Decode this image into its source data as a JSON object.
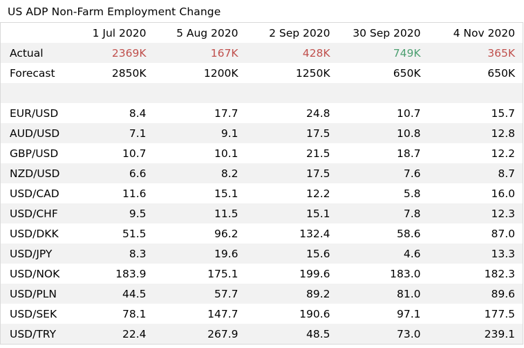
{
  "title": "US ADP Non-Farm Employment Change",
  "chart_data": {
    "type": "table",
    "title": "US ADP Non-Farm Employment Change",
    "columns": [
      "1 Jul 2020",
      "5 Aug 2020",
      "2 Sep 2020",
      "30 Sep 2020",
      "4 Nov 2020"
    ],
    "actual": {
      "label": "Actual",
      "values": [
        {
          "text": "2369K",
          "tone": "red"
        },
        {
          "text": "167K",
          "tone": "red"
        },
        {
          "text": "428K",
          "tone": "red"
        },
        {
          "text": "749K",
          "tone": "green"
        },
        {
          "text": "365K",
          "tone": "red"
        }
      ]
    },
    "forecast": {
      "label": "Forecast",
      "values": [
        "2850K",
        "1200K",
        "1250K",
        "650K",
        "650K"
      ]
    },
    "rows": [
      {
        "label": "EUR/USD",
        "values": [
          "8.4",
          "17.7",
          "24.8",
          "10.7",
          "15.7"
        ]
      },
      {
        "label": "AUD/USD",
        "values": [
          "7.1",
          "9.1",
          "17.5",
          "10.8",
          "12.8"
        ]
      },
      {
        "label": "GBP/USD",
        "values": [
          "10.7",
          "10.1",
          "21.5",
          "18.7",
          "12.2"
        ]
      },
      {
        "label": "NZD/USD",
        "values": [
          "6.6",
          "8.2",
          "17.5",
          "7.6",
          "8.7"
        ]
      },
      {
        "label": "USD/CAD",
        "values": [
          "11.6",
          "15.1",
          "12.2",
          "5.8",
          "16.0"
        ]
      },
      {
        "label": "USD/CHF",
        "values": [
          "9.5",
          "11.5",
          "15.1",
          "7.8",
          "12.3"
        ]
      },
      {
        "label": "USD/DKK",
        "values": [
          "51.5",
          "96.2",
          "132.4",
          "58.6",
          "87.0"
        ]
      },
      {
        "label": "USD/JPY",
        "values": [
          "8.3",
          "19.6",
          "15.6",
          "4.6",
          "13.3"
        ]
      },
      {
        "label": "USD/NOK",
        "values": [
          "183.9",
          "175.1",
          "199.6",
          "183.0",
          "182.3"
        ]
      },
      {
        "label": "USD/PLN",
        "values": [
          "44.5",
          "57.7",
          "89.2",
          "81.0",
          "89.6"
        ]
      },
      {
        "label": "USD/SEK",
        "values": [
          "78.1",
          "147.7",
          "190.6",
          "97.1",
          "177.5"
        ]
      },
      {
        "label": "USD/TRY",
        "values": [
          "22.4",
          "267.9",
          "48.5",
          "73.0",
          "239.1"
        ]
      }
    ]
  },
  "colors": {
    "red": "#c0504d",
    "green": "#4ea072",
    "stripe": "#f2f2f2"
  }
}
